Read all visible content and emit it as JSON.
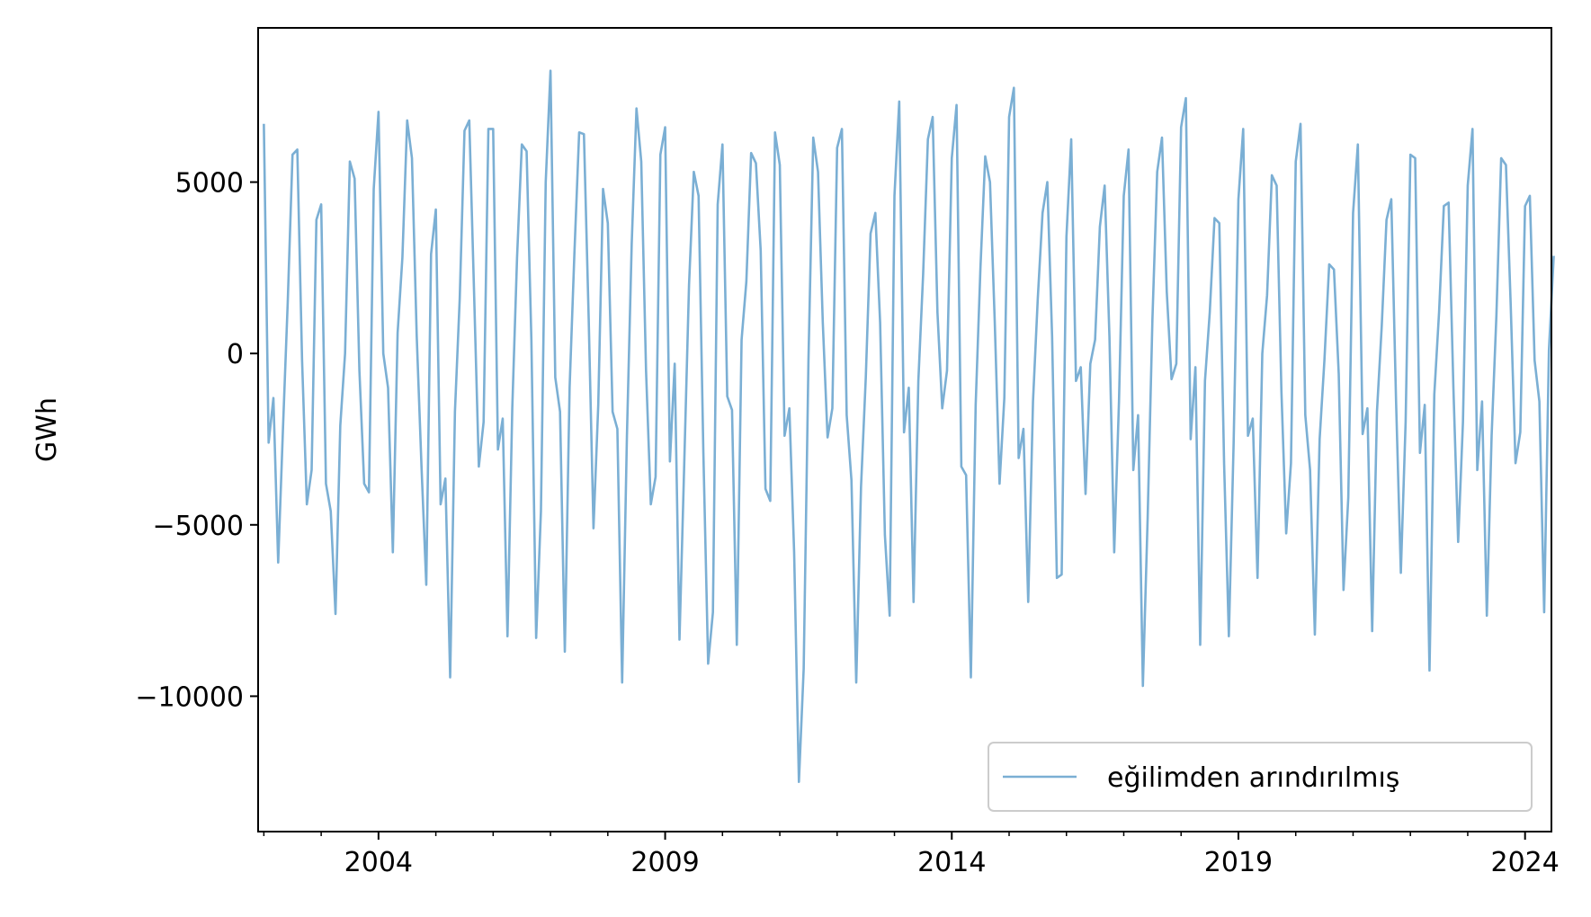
{
  "chart_data": {
    "type": "line",
    "title": "",
    "xlabel": "",
    "ylabel": "GWh",
    "xlim": [
      2001.9,
      2024.46
    ],
    "ylim": [
      -13950,
      9500
    ],
    "grid": false,
    "legend": "lower-right",
    "x_ticks": [
      2004,
      2009,
      2014,
      2019,
      2024
    ],
    "y_ticks": [
      5000,
      0,
      -5000,
      -10000
    ],
    "y_tick_labels": [
      "5000",
      "0",
      "−5000",
      "−10000"
    ],
    "colors": {
      "series": "#7bafd4"
    },
    "series": [
      {
        "name": "eğilimden arındırılmış",
        "x_start": 2002.0,
        "x_step_months": 1,
        "values": [
          6700,
          -2600,
          -1300,
          -6100,
          -2200,
          1500,
          5800,
          5950,
          -200,
          -4400,
          -3400,
          3900,
          4350,
          -3800,
          -4600,
          -7600,
          -2100,
          0,
          5600,
          5100,
          -500,
          -3800,
          -4050,
          4800,
          7050,
          0,
          -1000,
          -5800,
          600,
          2800,
          6800,
          5700,
          500,
          -3300,
          -6750,
          2900,
          4200,
          -4400,
          -3650,
          -9450,
          -1700,
          1600,
          6500,
          6800,
          1800,
          -3300,
          -2000,
          6550,
          6550,
          -2800,
          -1900,
          -8250,
          -1600,
          2800,
          6100,
          5900,
          400,
          -8300,
          -4600,
          5000,
          8250,
          -700,
          -1700,
          -8700,
          -1000,
          2900,
          6450,
          6400,
          1000,
          -5100,
          -1500,
          4800,
          3800,
          -1700,
          -2200,
          -9600,
          -2400,
          3200,
          7150,
          5600,
          -500,
          -4400,
          -3600,
          5800,
          6600,
          -3150,
          -300,
          -8350,
          -3200,
          2000,
          5300,
          4600,
          -2900,
          -9050,
          -7550,
          4350,
          6100,
          -1250,
          -1650,
          -8500,
          400,
          2100,
          5850,
          5550,
          3000,
          -3950,
          -4300,
          6450,
          5500,
          -2400,
          -1600,
          -5800,
          -12500,
          -9200,
          -200,
          6300,
          5300,
          900,
          -2450,
          -1600,
          6000,
          6550,
          -1800,
          -3700,
          -9600,
          -3900,
          -700,
          3500,
          4100,
          900,
          -5300,
          -7650,
          4600,
          7350,
          -2300,
          -1000,
          -7250,
          -800,
          2300,
          6250,
          6900,
          1200,
          -1600,
          -500,
          5700,
          7250,
          -3300,
          -3550,
          -9450,
          -1500,
          2500,
          5750,
          5000,
          900,
          -3800,
          -1300,
          6900,
          7750,
          -3050,
          -2200,
          -7250,
          -1400,
          1600,
          4100,
          5000,
          500,
          -6550,
          -6450,
          3400,
          6250,
          -800,
          -400,
          -4100,
          -300,
          400,
          3700,
          4900,
          500,
          -5800,
          -1400,
          4600,
          5950,
          -3400,
          -1800,
          -9700,
          -4800,
          1000,
          5300,
          6300,
          1800,
          -750,
          -300,
          6600,
          7450,
          -2500,
          -400,
          -8500,
          -800,
          1200,
          3950,
          3800,
          -3200,
          -8250,
          -2600,
          4500,
          6550,
          -2400,
          -1900,
          -6550,
          0,
          1700,
          5200,
          4900,
          -1100,
          -5250,
          -3200,
          5600,
          6700,
          -1800,
          -3400,
          -8200,
          -2500,
          -200,
          2600,
          2450,
          -600,
          -6900,
          -4200,
          4100,
          6100,
          -2350,
          -1600,
          -8100,
          -1700,
          800,
          3900,
          4500,
          -1400,
          -6400,
          -2000,
          5800,
          5700,
          -2900,
          -1500,
          -9250,
          -1200,
          1200,
          4300,
          4400,
          -1000,
          -5500,
          -2000,
          4900,
          6550,
          -3400,
          -1400,
          -7650,
          -2400,
          1100,
          5700,
          5500,
          1400,
          -3200,
          -2300,
          4300,
          4600,
          -200,
          -1400,
          -7550,
          100,
          2850
        ]
      }
    ]
  }
}
